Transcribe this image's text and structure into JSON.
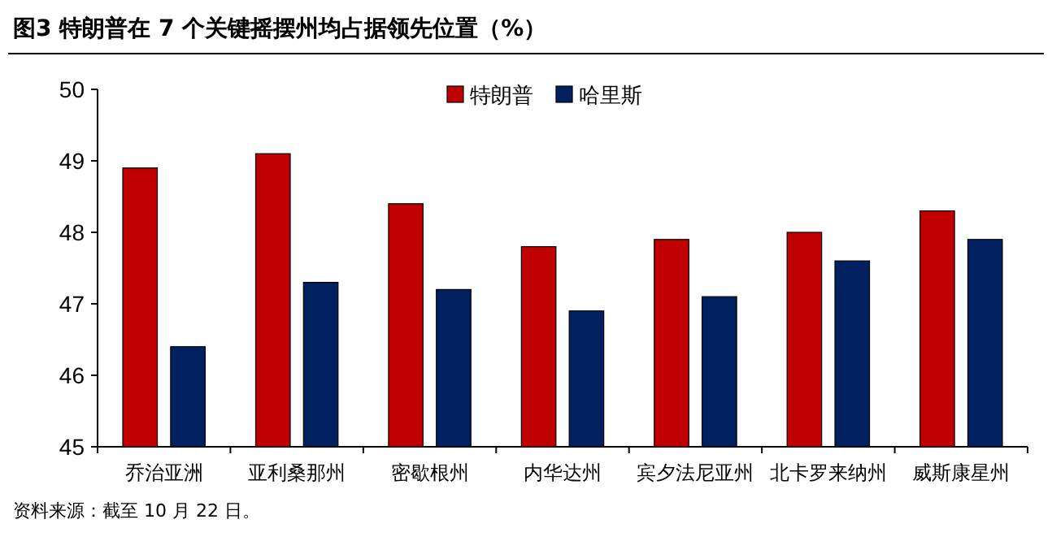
{
  "chart_data": {
    "type": "bar",
    "title": "图3  特朗普在 7 个关键摇摆州均占据领先位置（%）",
    "categories": [
      "乔治亚洲",
      "亚利桑那州",
      "密歇根州",
      "内华达州",
      "宾夕法尼亚州",
      "北卡罗来纳州",
      "威斯康星州"
    ],
    "series": [
      {
        "name": "特朗普",
        "color": "#c00000",
        "values": [
          48.9,
          49.1,
          48.4,
          47.8,
          47.9,
          48.0,
          48.3
        ]
      },
      {
        "name": "哈里斯",
        "color": "#002060",
        "values": [
          46.4,
          47.3,
          47.2,
          46.9,
          47.1,
          47.6,
          47.9
        ]
      }
    ],
    "ylim": [
      45,
      50
    ],
    "yticks": [
      45,
      46,
      47,
      48,
      49,
      50
    ],
    "grid": false,
    "legend": "top",
    "annotations": [
      "资料来源：截至 10 月 22 日。"
    ]
  }
}
